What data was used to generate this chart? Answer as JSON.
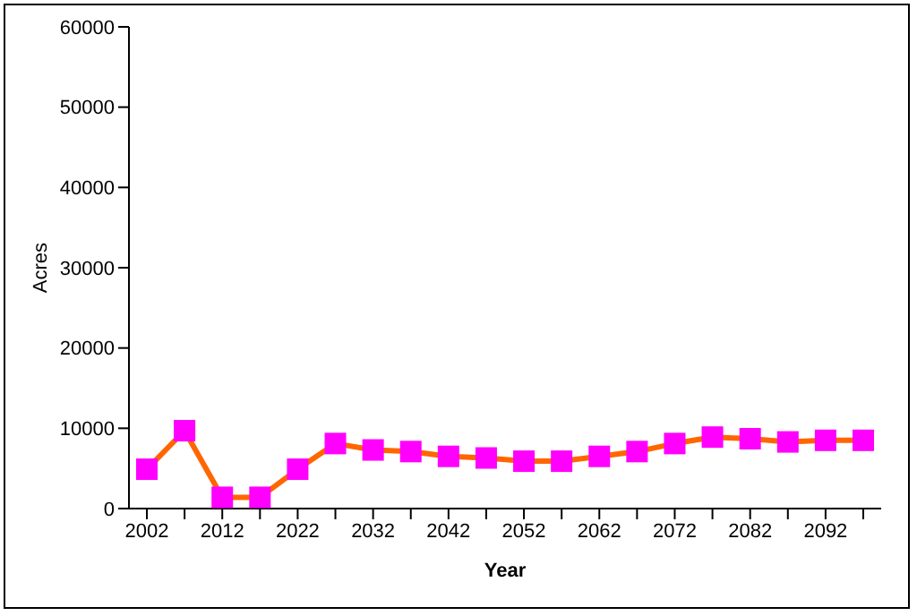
{
  "chart_data": {
    "type": "line",
    "xlabel": "Year",
    "ylabel": "Acres",
    "categories": [
      "2002",
      null,
      "2012",
      null,
      "2022",
      null,
      "2032",
      null,
      "2042",
      null,
      "2052",
      null,
      "2062",
      null,
      "2072",
      null,
      "2082",
      null,
      "2092",
      null
    ],
    "series": [
      {
        "color": "#ff6600",
        "colors": [
          "#ff00ff",
          "#ff00ff",
          "#ff00ff",
          "#ff00ff",
          "#ff00ff",
          "#ff00ff",
          "#ff00ff",
          "#ff00ff",
          "#ff00ff",
          "#ff00ff",
          "#ff00ff",
          "#ff00ff",
          "#ff00ff",
          "#ff00ff",
          "#ff00ff",
          "#ff00ff",
          "#ff00ff",
          "#ff00ff",
          "#ff00ff",
          "#ff00ff"
        ],
        "values": [
          4900,
          9700,
          1400,
          1400,
          4900,
          8100,
          7300,
          7100,
          6500,
          6300,
          5900,
          5900,
          6500,
          7100,
          8100,
          8900,
          8700,
          8300,
          8500,
          8500
        ]
      }
    ],
    "ylim": [
      0,
      60000
    ],
    "yticks": [
      0,
      10000,
      20000,
      30000,
      40000,
      50000,
      60000
    ],
    "marker": "square",
    "line_style": "solid"
  }
}
